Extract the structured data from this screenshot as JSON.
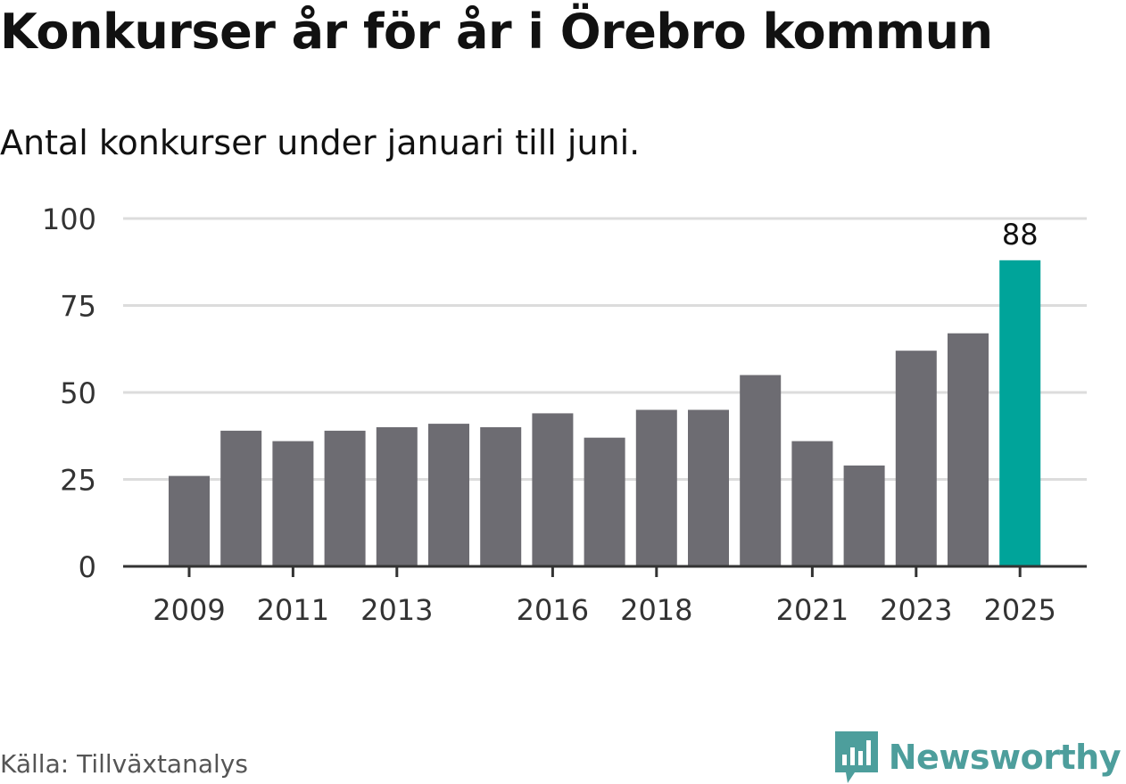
{
  "header": {
    "title": "Konkurser år för år i Örebro kommun",
    "subtitle": "Antal konkurser under januari till juni."
  },
  "footer": {
    "source": "Källa: Tillväxtanalys",
    "brand": "Newsworthy",
    "brand_logo_icon": "bar-chart-speech-bubble-icon"
  },
  "colors": {
    "bar": "#6d6c72",
    "highlight": "#00a49a",
    "grid": "#dcdcdc",
    "axis": "#333333",
    "brand": "#4d9e9c"
  },
  "chart_data": {
    "type": "bar",
    "categories": [
      "2009",
      "2010",
      "2011",
      "2012",
      "2013",
      "2014",
      "2015",
      "2016",
      "2017",
      "2018",
      "2019",
      "2020",
      "2021",
      "2022",
      "2023",
      "2024",
      "2025"
    ],
    "values": [
      26,
      39,
      36,
      39,
      40,
      41,
      40,
      44,
      37,
      45,
      45,
      55,
      36,
      29,
      62,
      67,
      88
    ],
    "x_tick_labels": [
      "2009",
      "2011",
      "2013",
      "2016",
      "2018",
      "2021",
      "2023",
      "2025"
    ],
    "y_ticks": [
      0,
      25,
      50,
      75,
      100
    ],
    "ylim": [
      0,
      100
    ],
    "highlight_category": "2025",
    "data_labels": [
      {
        "category": "2025",
        "label": "88"
      }
    ],
    "grid": true
  }
}
